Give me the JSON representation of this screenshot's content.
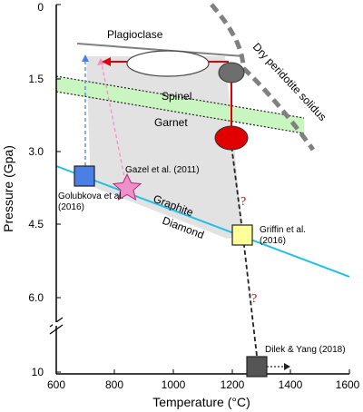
{
  "axes": {
    "xlabel": "Temperature (°C)",
    "ylabel": "Pressure (Gpa)",
    "x_ticks": [
      "600",
      "800",
      "1000",
      "1200",
      "1400",
      "1600"
    ],
    "y_ticks": [
      "0",
      "1.5",
      "3.0",
      "4.5",
      "6.0",
      "10"
    ]
  },
  "labels": {
    "plagioclase": "Plagioclase",
    "spinel": "Spinel",
    "garnet": "Garnet",
    "graphite": "Graphite",
    "diamond": "Diamond",
    "solidus": "Dry peridotite solidus",
    "question_mark": "?"
  },
  "references": {
    "gazel": "Gazel et al. (2011)",
    "golubkova_1": "Golubkova et al.",
    "golubkova_2": "(2016)",
    "griffin_1": "Griffin et al.",
    "griffin_2": "(2016)",
    "dilek": "Dilek & Yang (2018)"
  },
  "colors": {
    "graphite_diamond_line": "#1ec0e6",
    "garnet_spinel_band": "#c8f5c0",
    "path_red": "#e00000",
    "grey_field": "#e2e2e2",
    "blue_square": "#4a80e6",
    "yellow_square": "#ffff99",
    "dark_square": "#555555",
    "star": "#f090c8"
  }
}
